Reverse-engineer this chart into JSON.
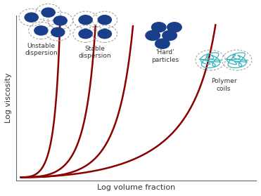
{
  "xlabel": "Log volume fraction",
  "ylabel": "Log viscosity",
  "curve_color": "#8B0000",
  "curve_lw": 1.8,
  "bg_color": "#ffffff",
  "curves": [
    {
      "phi_max": 0.2,
      "exponent": 2.5
    },
    {
      "phi_max": 0.38,
      "exponent": 2.5
    },
    {
      "phi_max": 0.57,
      "exponent": 2.5
    },
    {
      "phi_max": 0.92,
      "exponent": 1.8
    }
  ],
  "dot_color": "#1a3f8a",
  "coil_color": "#3ab5c0",
  "axis_label_fontsize": 8,
  "label_fontsize": 6.5,
  "xlim": [
    -0.02,
    1.02
  ],
  "ylim": [
    -0.1,
    5.5
  ]
}
